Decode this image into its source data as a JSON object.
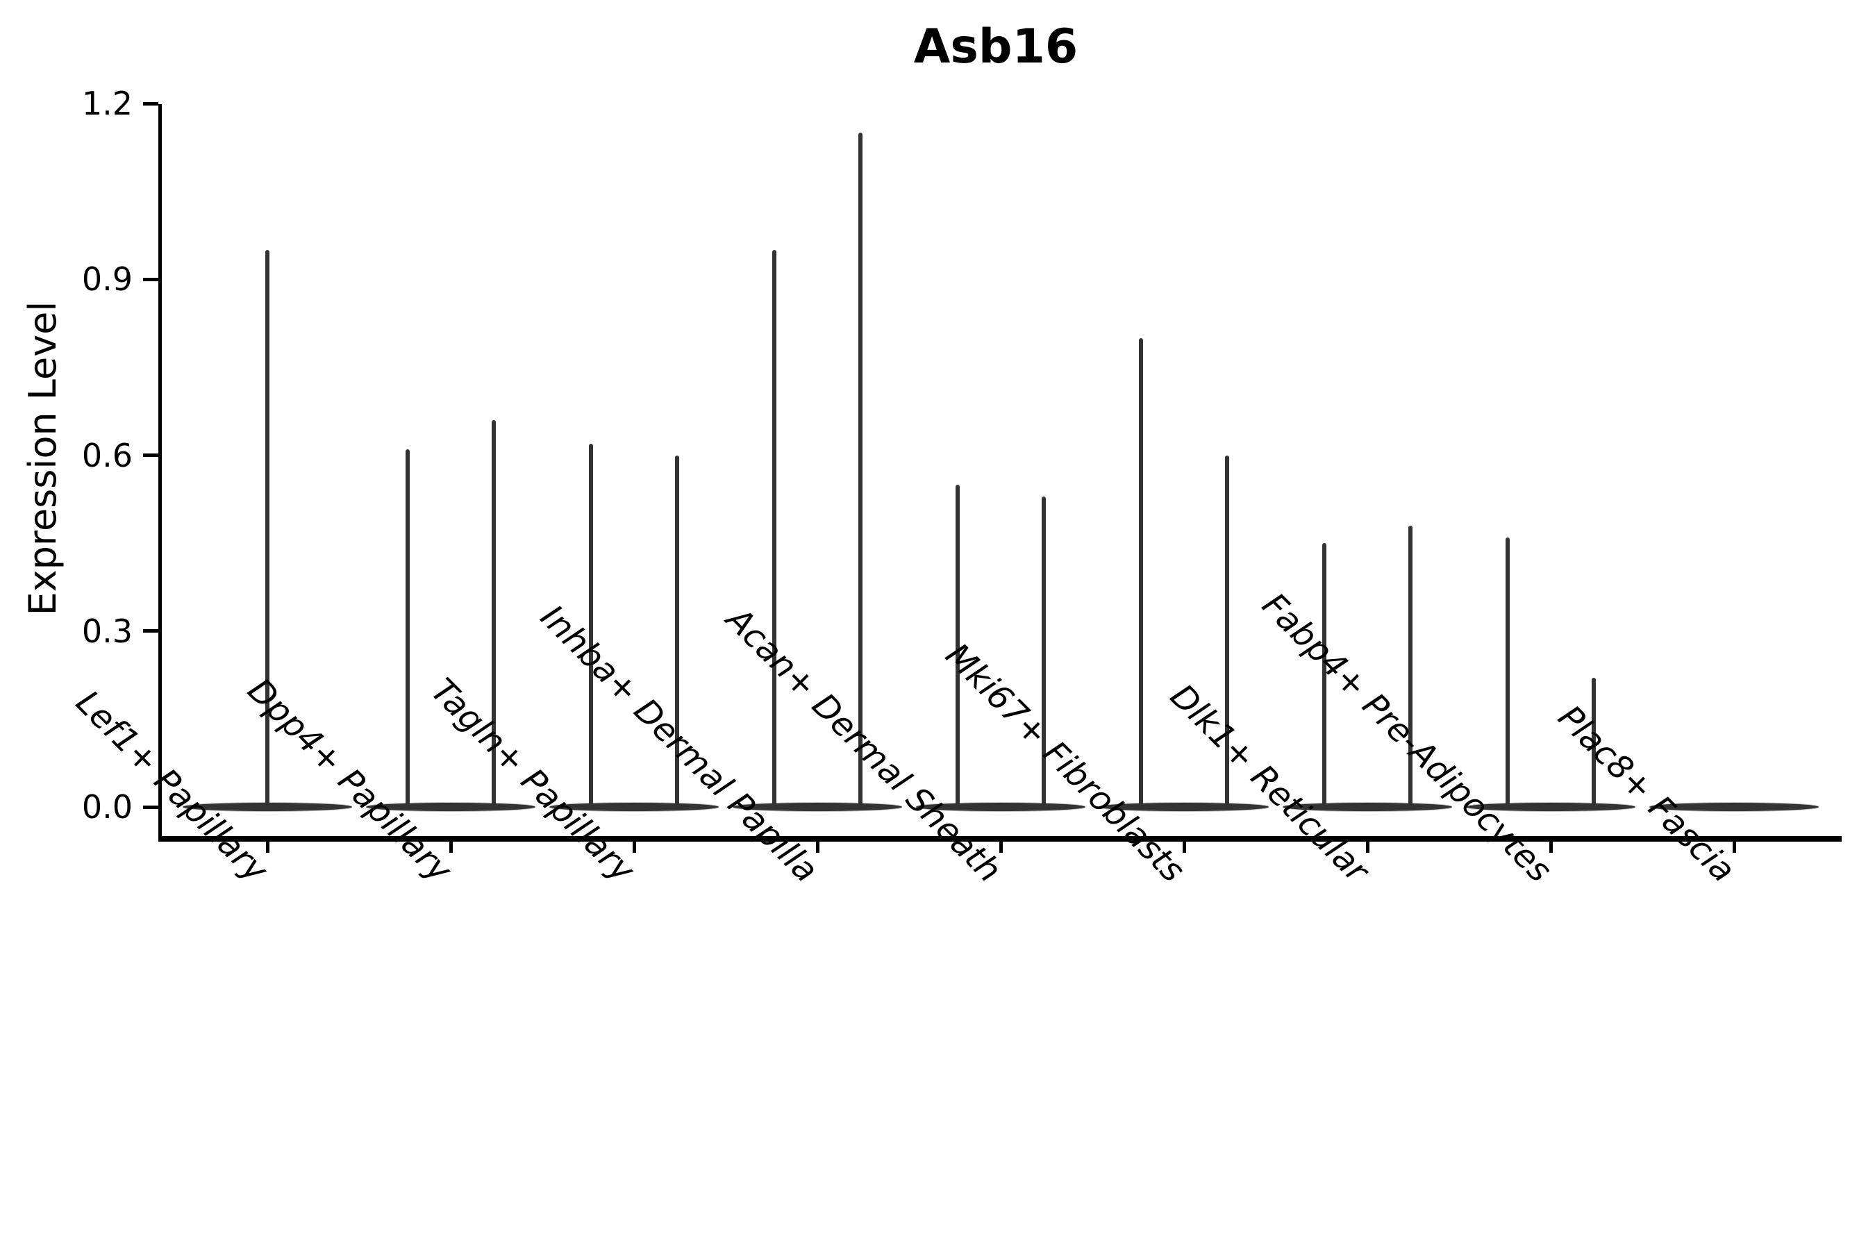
{
  "figure": {
    "title": "Asb16",
    "ylabel": "Expression Level"
  },
  "chart_data": {
    "type": "violin",
    "title": "Asb16",
    "xlabel": "",
    "ylabel": "Expression Level",
    "ylim": [
      0,
      1.2
    ],
    "yticks": [
      "0.0",
      "0.3",
      "0.6",
      "0.9",
      "1.2"
    ],
    "ytick_values": [
      0.0,
      0.3,
      0.6,
      0.9,
      1.2
    ],
    "grid": false,
    "legend": "none",
    "x_label_rotation_deg": 45,
    "x_label_style": "italic",
    "categories": [
      "Lef1+ Papillary",
      "Dpp4+ Papillary",
      "Tagln+ Papillary",
      "Inhba+ Dermal Papilla",
      "Acan+ Dermal Sheath",
      "Mki67+ Fibroblasts",
      "Dlk1+ Reticular",
      "Fabp4+ Pre-Adipocytes",
      "Plac8+ Fascia"
    ],
    "violins": [
      {
        "category": "Lef1+ Papillary",
        "spike_values": [
          0.95
        ]
      },
      {
        "category": "Dpp4+ Papillary",
        "spike_values": [
          0.61,
          0.66
        ]
      },
      {
        "category": "Tagln+ Papillary",
        "spike_values": [
          0.62,
          0.6
        ]
      },
      {
        "category": "Inhba+ Dermal Papilla",
        "spike_values": [
          0.95,
          1.15
        ]
      },
      {
        "category": "Acan+ Dermal Sheath",
        "spike_values": [
          0.55,
          0.53
        ]
      },
      {
        "category": "Mki67+ Fibroblasts",
        "spike_values": [
          0.8,
          0.6
        ]
      },
      {
        "category": "Dlk1+ Reticular",
        "spike_values": [
          0.45,
          0.48
        ]
      },
      {
        "category": "Fabp4+ Pre-Adipocytes",
        "spike_values": [
          0.46,
          0.22
        ]
      },
      {
        "category": "Plac8+ Fascia",
        "spike_values": []
      }
    ],
    "colors": {
      "ink": "#000000",
      "violin": "#333333",
      "background": "#ffffff"
    }
  }
}
